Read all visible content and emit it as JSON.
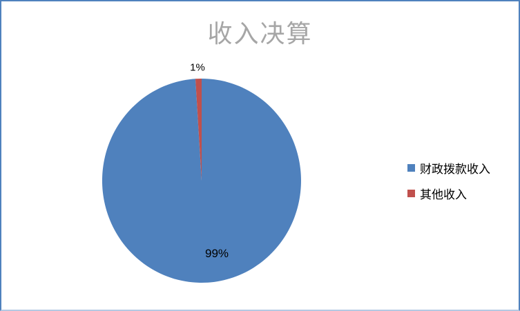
{
  "frame": {
    "border_color": "#4F81BD",
    "background": "#FFFFFF"
  },
  "chart_data": {
    "type": "pie",
    "title": "收入决算",
    "title_color": "#A6A6A6",
    "categories": [
      "财政拨款收入",
      "其他收入"
    ],
    "values": [
      99,
      1
    ],
    "unit": "%",
    "colors": [
      "#4F81BD",
      "#C0504D"
    ],
    "slice_labels": [
      "99%",
      "1%"
    ],
    "legend_position": "right",
    "start_angle_deg": 0,
    "direction": "clockwise"
  },
  "legend": {
    "items": [
      {
        "label": "财政拨款收入",
        "color": "#4F81BD"
      },
      {
        "label": "其他收入",
        "color": "#C0504D"
      }
    ]
  }
}
